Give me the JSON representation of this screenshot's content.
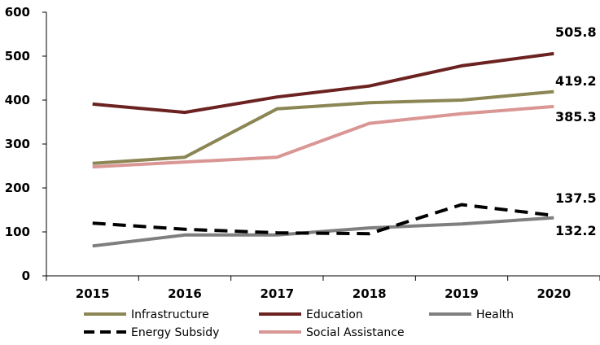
{
  "chart_data": {
    "type": "line",
    "title": "",
    "xlabel": "",
    "ylabel": "",
    "ylim": [
      0,
      600
    ],
    "yticks": [
      0,
      100,
      200,
      300,
      400,
      500,
      600
    ],
    "x": [
      "2015",
      "2016",
      "2017",
      "2018",
      "2019",
      "2020"
    ],
    "grid": false,
    "legend_position": "bottom",
    "series": [
      {
        "name": "Infrastructure",
        "color": "#8B8654",
        "dash": "solid",
        "values": [
          256,
          270,
          380,
          394,
          400,
          419.2
        ],
        "end_label": "419.2"
      },
      {
        "name": "Education",
        "color": "#6B2220",
        "dash": "solid",
        "values": [
          391,
          372,
          407,
          432,
          478,
          505.8
        ],
        "end_label": "505.8"
      },
      {
        "name": "Health",
        "color": "#7F7F7F",
        "dash": "solid",
        "values": [
          68,
          93,
          93,
          109,
          118,
          132.2
        ],
        "end_label": "132.2"
      },
      {
        "name": "Energy Subsidy",
        "color": "#000000",
        "dash": "dashed",
        "values": [
          120,
          106,
          98,
          96,
          162,
          137.5
        ],
        "end_label": "137.5"
      },
      {
        "name": "Social Assistance",
        "color": "#D99694",
        "dash": "solid",
        "values": [
          248,
          259,
          270,
          347,
          369,
          385.3
        ],
        "end_label": "385.3"
      }
    ]
  }
}
